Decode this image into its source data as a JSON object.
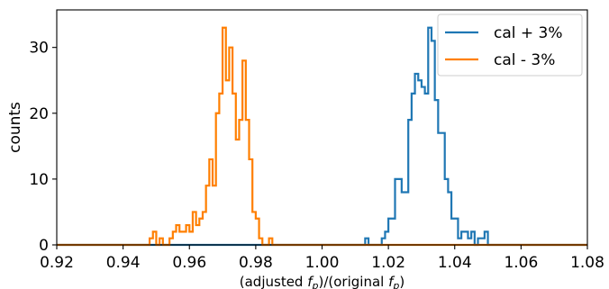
{
  "chart_data": {
    "type": "histogram-step",
    "xlabel_html": "(adjusted f_p)/(original f_p)",
    "xlabel_parts": {
      "open": "(adjusted ",
      "f1": "f",
      "sub1": "p",
      "mid": ")/(original ",
      "f2": "f",
      "sub2": "p",
      "close": ")"
    },
    "ylabel": "counts",
    "xlim": [
      0.92,
      1.08
    ],
    "ylim": [
      0,
      35.7
    ],
    "xticks": [
      0.92,
      0.94,
      0.96,
      0.98,
      1.0,
      1.02,
      1.04,
      1.06,
      1.08
    ],
    "xtick_labels": [
      "0.92",
      "0.94",
      "0.96",
      "0.98",
      "1.00",
      "1.02",
      "1.04",
      "1.06",
      "1.08"
    ],
    "yticks": [
      0,
      10,
      20,
      30
    ],
    "ytick_labels": [
      "0",
      "10",
      "20",
      "30"
    ],
    "bin_width": 0.001,
    "legend_position": "top-right",
    "series": [
      {
        "name": "cal + 3%",
        "color": "#1f77b4",
        "bin_start": 1.013,
        "counts": [
          1,
          0,
          0,
          0,
          0,
          1,
          2,
          4,
          4,
          10,
          10,
          8,
          8,
          19,
          23,
          26,
          25,
          24,
          23,
          33,
          31,
          22,
          17,
          17,
          10,
          8,
          4,
          4,
          1,
          2,
          2,
          1,
          2,
          0,
          1,
          1,
          2,
          0
        ]
      },
      {
        "name": "cal - 3%",
        "color": "#ff7f00",
        "bin_start": 0.948,
        "counts": [
          1,
          2,
          0,
          1,
          0,
          0,
          1,
          2,
          3,
          2,
          2,
          3,
          2,
          5,
          3,
          4,
          5,
          9,
          13,
          9,
          20,
          23,
          33,
          25,
          30,
          23,
          16,
          19,
          28,
          19,
          13,
          5,
          4,
          1,
          0,
          0,
          1
        ]
      }
    ]
  }
}
